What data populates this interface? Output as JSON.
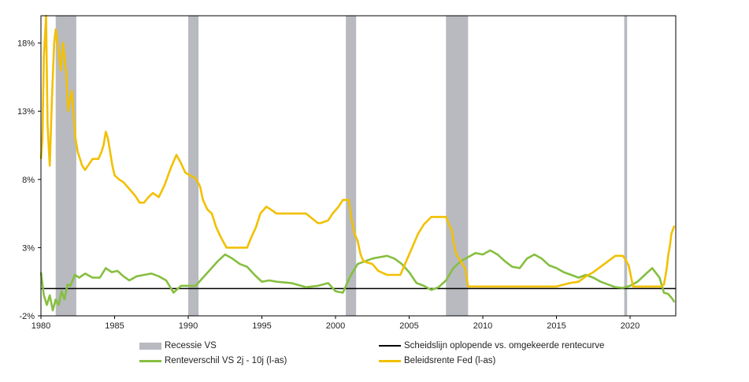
{
  "colors": {
    "recession": "#b8bac0",
    "fed_rate": "#f2c000",
    "spread": "#86bf3f",
    "threshold": "#000000",
    "axis": "#000000"
  },
  "chart_data": {
    "type": "line",
    "xlim": [
      1980,
      2023.1
    ],
    "ylim": [
      -2,
      20
    ],
    "x_ticks": [
      1980,
      1985,
      1990,
      1995,
      2000,
      2005,
      2010,
      2015,
      2020
    ],
    "x_tick_labels": [
      "1980",
      "1985",
      "1990",
      "1995",
      "2000",
      "2005",
      "2010",
      "2015",
      "2020"
    ],
    "y_ticks": [
      -2,
      3,
      8,
      13,
      18
    ],
    "y_tick_labels": [
      "-2%",
      "3%",
      "8%",
      "13%",
      "18%"
    ],
    "legend_position": "bottom",
    "grid": false,
    "recessions": [
      {
        "start": 1981.0,
        "end": 1982.4
      },
      {
        "start": 1990.0,
        "end": 1990.7
      },
      {
        "start": 2000.7,
        "end": 2001.4
      },
      {
        "start": 2007.5,
        "end": 2009.0
      },
      {
        "start": 2019.6,
        "end": 2019.8
      }
    ],
    "threshold_value": 0,
    "series": [
      {
        "name": "Beleidsrente Fed (l-as)",
        "color": "#f2c000",
        "x": [
          1980.0,
          1980.1,
          1980.2,
          1980.35,
          1980.45,
          1980.6,
          1980.75,
          1980.9,
          1981.0,
          1981.2,
          1981.35,
          1981.5,
          1981.7,
          1981.85,
          1982.0,
          1982.1,
          1982.2,
          1982.35,
          1982.5,
          1982.65,
          1982.8,
          1983.0,
          1983.5,
          1983.9,
          1984.1,
          1984.25,
          1984.4,
          1984.55,
          1984.7,
          1984.85,
          1985.0,
          1985.3,
          1985.6,
          1986.0,
          1986.4,
          1986.7,
          1987.0,
          1987.3,
          1987.6,
          1988.0,
          1988.4,
          1988.8,
          1989.2,
          1989.5,
          1989.8,
          1990.2,
          1990.5,
          1990.8,
          1991.0,
          1991.3,
          1991.6,
          1991.9,
          1992.2,
          1992.6,
          1993.0,
          1993.5,
          1994.0,
          1994.3,
          1994.6,
          1994.9,
          1995.3,
          1995.6,
          1996.0,
          1997.0,
          1998.0,
          1998.8,
          1999.0,
          1999.5,
          1999.8,
          2000.2,
          2000.5,
          2000.9,
          2001.1,
          2001.3,
          2001.5,
          2001.7,
          2001.9,
          2002.5,
          2002.9,
          2003.5,
          2004.4,
          2004.8,
          2005.2,
          2005.6,
          2006.0,
          2006.5,
          2007.5,
          2007.7,
          2007.9,
          2008.0,
          2008.2,
          2008.5,
          2008.8,
          2009.0,
          2015.0,
          2015.9,
          2016.5,
          2017.0,
          2017.5,
          2018.0,
          2018.5,
          2019.0,
          2019.5,
          2019.7,
          2019.9,
          2020.2,
          2022.1,
          2022.3,
          2022.4,
          2022.5,
          2022.6,
          2022.7,
          2022.8,
          2023.0
        ],
        "values": [
          9.5,
          11.0,
          17.0,
          20.0,
          12.0,
          9.0,
          14.0,
          18.0,
          19.0,
          17.5,
          16.0,
          18.0,
          16.0,
          13.0,
          14.0,
          14.5,
          13.0,
          11.0,
          10.0,
          9.5,
          9.0,
          8.7,
          9.5,
          9.5,
          10.0,
          10.5,
          11.5,
          11.0,
          10.0,
          9.0,
          8.3,
          8.0,
          7.8,
          7.3,
          6.8,
          6.3,
          6.3,
          6.7,
          7.0,
          6.7,
          7.6,
          8.8,
          9.8,
          9.2,
          8.5,
          8.25,
          8.1,
          7.5,
          6.5,
          5.8,
          5.5,
          4.5,
          3.8,
          3.0,
          3.0,
          3.0,
          3.0,
          3.8,
          4.5,
          5.5,
          6.0,
          5.8,
          5.5,
          5.5,
          5.5,
          4.8,
          4.8,
          5.0,
          5.5,
          6.0,
          6.5,
          6.5,
          5.0,
          4.0,
          3.5,
          2.5,
          2.0,
          1.8,
          1.3,
          1.0,
          1.0,
          2.0,
          3.0,
          4.0,
          4.7,
          5.25,
          5.25,
          4.7,
          4.3,
          3.5,
          2.5,
          2.0,
          1.5,
          0.15,
          0.15,
          0.4,
          0.5,
          0.9,
          1.2,
          1.6,
          2.0,
          2.4,
          2.4,
          2.1,
          1.7,
          0.15,
          0.15,
          0.3,
          0.9,
          1.6,
          2.5,
          3.1,
          4.0,
          4.6
        ]
      },
      {
        "name": "Renteverschil VS 2j - 10j (l-as)",
        "color": "#86bf3f",
        "x": [
          1980.0,
          1980.2,
          1980.4,
          1980.6,
          1980.8,
          1981.0,
          1981.2,
          1981.4,
          1981.6,
          1981.8,
          1982.0,
          1982.3,
          1982.6,
          1983.0,
          1983.5,
          1984.0,
          1984.4,
          1984.8,
          1985.2,
          1985.6,
          1986.0,
          1986.5,
          1987.0,
          1987.5,
          1988.0,
          1988.5,
          1989.0,
          1989.5,
          1990.0,
          1990.5,
          1991.0,
          1991.5,
          1992.0,
          1992.5,
          1993.0,
          1993.5,
          1994.0,
          1994.5,
          1995.0,
          1995.5,
          1996.0,
          1997.0,
          1998.0,
          1998.8,
          1999.5,
          2000.0,
          2000.5,
          2001.0,
          2001.5,
          2002.0,
          2002.5,
          2003.0,
          2003.5,
          2004.0,
          2004.5,
          2005.0,
          2005.5,
          2006.0,
          2006.5,
          2007.0,
          2007.5,
          2008.0,
          2008.5,
          2009.0,
          2009.5,
          2010.0,
          2010.5,
          2011.0,
          2011.5,
          2012.0,
          2012.5,
          2013.0,
          2013.5,
          2014.0,
          2014.5,
          2015.0,
          2015.5,
          2016.0,
          2016.5,
          2017.0,
          2017.5,
          2018.0,
          2018.5,
          2019.0,
          2019.5,
          2020.0,
          2020.5,
          2021.0,
          2021.5,
          2022.0,
          2022.3,
          2022.6,
          2022.9,
          2023.0
        ],
        "values": [
          1.2,
          -0.5,
          -1.2,
          -0.5,
          -1.6,
          -0.8,
          -1.2,
          -0.2,
          -0.8,
          0.3,
          0.2,
          1.0,
          0.8,
          1.1,
          0.8,
          0.8,
          1.5,
          1.2,
          1.3,
          0.9,
          0.6,
          0.9,
          1.0,
          1.1,
          0.9,
          0.6,
          -0.3,
          0.2,
          0.2,
          0.2,
          0.8,
          1.4,
          2.0,
          2.5,
          2.2,
          1.8,
          1.6,
          1.0,
          0.5,
          0.6,
          0.5,
          0.4,
          0.1,
          0.2,
          0.4,
          -0.2,
          -0.3,
          0.9,
          1.8,
          2.0,
          2.2,
          2.3,
          2.4,
          2.2,
          1.8,
          1.2,
          0.4,
          0.2,
          -0.1,
          0.1,
          0.6,
          1.5,
          2.0,
          2.3,
          2.6,
          2.5,
          2.8,
          2.5,
          2.0,
          1.6,
          1.5,
          2.2,
          2.5,
          2.2,
          1.7,
          1.5,
          1.2,
          1.0,
          0.8,
          1.0,
          0.8,
          0.5,
          0.3,
          0.1,
          0.05,
          0.2,
          0.5,
          1.0,
          1.5,
          0.8,
          -0.3,
          -0.4,
          -0.8,
          -1.0
        ]
      }
    ],
    "legend": [
      {
        "label": "Recessie VS",
        "kind": "rect"
      },
      {
        "label": "Scheidslijn oplopende vs. omgekeerde rentecurve",
        "kind": "line-black"
      },
      {
        "label": "Renteverschil VS 2j - 10j (l-as)",
        "kind": "line-green"
      },
      {
        "label": "Beleidsrente Fed (l-as)",
        "kind": "line-yellow"
      }
    ]
  }
}
